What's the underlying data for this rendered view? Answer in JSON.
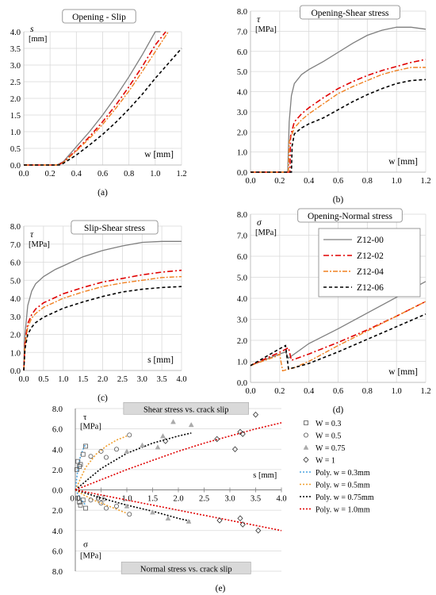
{
  "colors": {
    "Z12-00": "#7f7f7f",
    "Z12-02": "#e00000",
    "Z12-04": "#f08020",
    "Z12-06": "#000000",
    "poly_0.3": "#4aa3df",
    "poly_0.5": "#f0a030",
    "poly_0.75": "#000000",
    "poly_1.0": "#e00000"
  },
  "chart_data": [
    {
      "id": "a",
      "type": "line",
      "panel_label": "(a)",
      "title": "Opening - Slip",
      "ylabel_symbol": "s",
      "ylabel_unit": "[mm]",
      "xlabel": "w [mm]",
      "xlim": [
        0,
        1.2
      ],
      "ylim": [
        0,
        4.0
      ],
      "xticks": [
        "0.0",
        "0.2",
        "0.4",
        "0.6",
        "0.8",
        "1.0",
        "1.2"
      ],
      "yticks": [
        "0.0",
        "0.5",
        "1.0",
        "1.5",
        "2.0",
        "2.5",
        "3.0",
        "3.5",
        "4.0"
      ],
      "series": [
        {
          "key": "Z12-00",
          "x": [
            0,
            0.25,
            0.3,
            0.4,
            0.5,
            0.6,
            0.7,
            0.8,
            0.9,
            1.0,
            1.04
          ],
          "y": [
            0,
            0,
            0.1,
            0.55,
            1.0,
            1.5,
            2.05,
            2.65,
            3.3,
            4.0,
            4.0
          ]
        },
        {
          "key": "Z12-02",
          "x": [
            0,
            0.26,
            0.3,
            0.4,
            0.5,
            0.6,
            0.7,
            0.8,
            0.9,
            1.0,
            1.08
          ],
          "y": [
            0,
            0,
            0.08,
            0.45,
            0.85,
            1.3,
            1.8,
            2.35,
            2.95,
            3.6,
            4.0
          ]
        },
        {
          "key": "Z12-04",
          "x": [
            0,
            0.26,
            0.3,
            0.4,
            0.5,
            0.6,
            0.7,
            0.8,
            0.9,
            1.0,
            1.1
          ],
          "y": [
            0,
            0,
            0.07,
            0.42,
            0.8,
            1.22,
            1.7,
            2.22,
            2.8,
            3.4,
            4.0
          ]
        },
        {
          "key": "Z12-06",
          "x": [
            0,
            0.27,
            0.3,
            0.4,
            0.5,
            0.6,
            0.7,
            0.8,
            0.9,
            1.0,
            1.1,
            1.2
          ],
          "y": [
            0,
            0,
            0.05,
            0.3,
            0.6,
            0.92,
            1.28,
            1.68,
            2.12,
            2.6,
            3.05,
            3.5
          ]
        }
      ]
    },
    {
      "id": "b",
      "type": "line",
      "panel_label": "(b)",
      "title": "Opening-Shear stress",
      "ylabel_symbol": "τ",
      "ylabel_unit": "[MPa]",
      "xlabel": "w [mm]",
      "xlim": [
        0,
        1.2
      ],
      "ylim": [
        0,
        8.0
      ],
      "xticks": [
        "0.0",
        "0.2",
        "0.4",
        "0.6",
        "0.8",
        "1.0",
        "1.2"
      ],
      "yticks": [
        "0.0",
        "1.0",
        "2.0",
        "3.0",
        "4.0",
        "5.0",
        "6.0",
        "7.0",
        "8.0"
      ],
      "series": [
        {
          "key": "Z12-00",
          "x": [
            0,
            0.255,
            0.265,
            0.28,
            0.3,
            0.35,
            0.4,
            0.5,
            0.6,
            0.7,
            0.8,
            0.9,
            1.0,
            1.1,
            1.2
          ],
          "y": [
            0,
            0,
            2.5,
            3.8,
            4.4,
            4.85,
            5.1,
            5.5,
            5.95,
            6.4,
            6.8,
            7.05,
            7.2,
            7.2,
            7.1
          ]
        },
        {
          "key": "Z12-02",
          "x": [
            0,
            0.27,
            0.275,
            0.3,
            0.35,
            0.4,
            0.5,
            0.6,
            0.7,
            0.8,
            0.9,
            1.0,
            1.1,
            1.2
          ],
          "y": [
            0,
            0,
            1.8,
            2.5,
            2.9,
            3.2,
            3.7,
            4.15,
            4.5,
            4.8,
            5.05,
            5.25,
            5.45,
            5.6
          ]
        },
        {
          "key": "Z12-04",
          "x": [
            0,
            0.26,
            0.265,
            0.3,
            0.35,
            0.4,
            0.5,
            0.6,
            0.7,
            0.8,
            0.9,
            1.0,
            1.1,
            1.2
          ],
          "y": [
            0,
            0,
            1.5,
            2.2,
            2.6,
            2.9,
            3.4,
            3.9,
            4.25,
            4.55,
            4.85,
            5.05,
            5.2,
            5.2
          ]
        },
        {
          "key": "Z12-06",
          "x": [
            0,
            0.28,
            0.285,
            0.3,
            0.35,
            0.4,
            0.5,
            0.6,
            0.7,
            0.8,
            0.9,
            1.0,
            1.1,
            1.2
          ],
          "y": [
            0,
            0,
            1.3,
            1.9,
            2.2,
            2.4,
            2.7,
            3.1,
            3.5,
            3.85,
            4.15,
            4.4,
            4.55,
            4.6
          ]
        }
      ]
    },
    {
      "id": "c",
      "type": "line",
      "panel_label": "(c)",
      "title": "Slip-Shear stress",
      "ylabel_symbol": "τ",
      "ylabel_unit": "[MPa]",
      "xlabel": "s [mm]",
      "xlim": [
        0,
        4.0
      ],
      "ylim": [
        0,
        8.0
      ],
      "xticks": [
        "0.0",
        "0.5",
        "1.0",
        "1.5",
        "2.0",
        "2.5",
        "3.0",
        "3.5",
        "4.0"
      ],
      "yticks": [
        "0.0",
        "1.0",
        "2.0",
        "3.0",
        "4.0",
        "5.0",
        "6.0",
        "7.0",
        "8.0"
      ],
      "series": [
        {
          "key": "Z12-00",
          "x": [
            0,
            0.03,
            0.1,
            0.2,
            0.3,
            0.5,
            0.8,
            1.0,
            1.5,
            2.0,
            2.5,
            3.0,
            3.5,
            4.0
          ],
          "y": [
            0,
            2.0,
            3.6,
            4.4,
            4.8,
            5.2,
            5.6,
            5.8,
            6.3,
            6.65,
            6.9,
            7.1,
            7.15,
            7.15
          ]
        },
        {
          "key": "Z12-02",
          "x": [
            0,
            0.03,
            0.1,
            0.2,
            0.3,
            0.5,
            0.8,
            1.0,
            1.5,
            2.0,
            2.5,
            3.0,
            3.5,
            4.0
          ],
          "y": [
            0,
            1.5,
            2.6,
            3.1,
            3.4,
            3.75,
            4.05,
            4.25,
            4.6,
            4.9,
            5.1,
            5.3,
            5.45,
            5.55
          ]
        },
        {
          "key": "Z12-04",
          "x": [
            0,
            0.03,
            0.1,
            0.2,
            0.3,
            0.5,
            0.8,
            1.0,
            1.5,
            2.0,
            2.5,
            3.0,
            3.5,
            4.0
          ],
          "y": [
            0,
            1.4,
            2.4,
            2.9,
            3.15,
            3.5,
            3.8,
            4.0,
            4.35,
            4.65,
            4.85,
            5.0,
            5.15,
            5.2
          ]
        },
        {
          "key": "Z12-06",
          "x": [
            0,
            0.03,
            0.1,
            0.2,
            0.3,
            0.5,
            0.8,
            1.0,
            1.5,
            2.0,
            2.5,
            3.0,
            3.5,
            4.0
          ],
          "y": [
            0,
            1.2,
            2.0,
            2.4,
            2.65,
            2.95,
            3.25,
            3.45,
            3.8,
            4.1,
            4.35,
            4.5,
            4.6,
            4.65
          ]
        }
      ]
    },
    {
      "id": "d",
      "type": "line",
      "panel_label": "(d)",
      "title": "Opening-Normal stress",
      "ylabel_symbol": "σ",
      "ylabel_unit": "[MPa]",
      "xlabel": "w [mm]",
      "xlim": [
        0,
        1.2
      ],
      "ylim": [
        0,
        8.0
      ],
      "xticks": [
        "0.0",
        "0.2",
        "0.4",
        "0.6",
        "0.8",
        "1.0",
        "1.2"
      ],
      "yticks": [
        "0.0",
        "1.0",
        "2.0",
        "3.0",
        "4.0",
        "5.0",
        "6.0",
        "7.0",
        "8.0"
      ],
      "legend": [
        "Z12-00",
        "Z12-02",
        "Z12-04",
        "Z12-06"
      ],
      "series": [
        {
          "key": "Z12-00",
          "x": [
            0,
            0.2,
            0.24,
            0.26,
            0.4,
            0.6,
            0.8,
            1.0,
            1.2
          ],
          "y": [
            0.8,
            1.35,
            1.45,
            1.15,
            1.85,
            2.55,
            3.3,
            4.05,
            4.8
          ]
        },
        {
          "key": "Z12-02",
          "x": [
            0,
            0.22,
            0.26,
            0.28,
            0.4,
            0.6,
            0.8,
            1.0,
            1.2
          ],
          "y": [
            0.8,
            1.5,
            1.65,
            1.05,
            1.35,
            1.9,
            2.5,
            3.15,
            3.85
          ]
        },
        {
          "key": "Z12-04",
          "x": [
            0,
            0.18,
            0.2,
            0.22,
            0.3,
            0.4,
            0.6,
            0.8,
            1.0,
            1.2
          ],
          "y": [
            0.8,
            1.25,
            1.35,
            0.55,
            0.7,
            1.0,
            1.75,
            2.45,
            3.15,
            3.85
          ]
        },
        {
          "key": "Z12-06",
          "x": [
            0,
            0.2,
            0.24,
            0.26,
            0.3,
            0.4,
            0.6,
            0.8,
            1.0,
            1.2
          ],
          "y": [
            0.8,
            1.6,
            1.75,
            0.65,
            0.7,
            0.9,
            1.45,
            2.05,
            2.65,
            3.25
          ]
        }
      ]
    },
    {
      "id": "e",
      "type": "scatter",
      "panel_label": "(e)",
      "title_top": "Shear stress vs. crack slip",
      "title_bottom": "Normal stress vs. crack slip",
      "ylabel_top_symbol": "τ",
      "ylabel_top_unit": "[MPa]",
      "ylabel_bottom_symbol": "σ",
      "ylabel_bottom_unit": "[MPa]",
      "xlabel": "s [mm]",
      "xlim": [
        0,
        4.0
      ],
      "ylim": [
        -8.0,
        8.0
      ],
      "xticks": [
        "0.0",
        "0.5",
        "1.0",
        "1.5",
        "2.0",
        "2.5",
        "3.0",
        "3.5",
        "4.0"
      ],
      "yticks": [
        "8.0",
        "6.0",
        "4.0",
        "2.0",
        "0.0",
        "2.0",
        "4.0",
        "6.0",
        "8.0"
      ],
      "legend": [
        "W = 0.3",
        "W = 0.5",
        "W = 0.75",
        "W = 1",
        "Poly. w = 0.3mm",
        "Poly. w = 0.5mm",
        "Poly. w = 0.75mm",
        "Poly. w = 1.0mm"
      ],
      "scatter": [
        {
          "name": "W = 0.3",
          "marker": "square",
          "x": [
            0.03,
            0.05,
            0.08,
            0.1,
            0.15,
            0.2,
            0.05,
            0.08,
            0.1,
            0.15,
            0.2
          ],
          "y": [
            2.0,
            2.8,
            2.3,
            2.5,
            3.5,
            4.3,
            -0.8,
            -1.2,
            -1.5,
            -1.0,
            -1.8
          ]
        },
        {
          "name": "W = 0.5",
          "marker": "circle",
          "x": [
            0.3,
            0.5,
            0.6,
            0.8,
            1.05,
            0.3,
            0.5,
            0.6,
            0.8,
            1.05
          ],
          "y": [
            3.3,
            3.8,
            3.2,
            4.0,
            5.4,
            -1.0,
            -1.3,
            -1.8,
            -1.6,
            -2.4
          ]
        },
        {
          "name": "W = 0.75",
          "marker": "triangle",
          "x": [
            1.0,
            1.3,
            1.6,
            1.7,
            1.9,
            2.25,
            1.0,
            1.5,
            1.8,
            2.2
          ],
          "y": [
            3.8,
            4.4,
            4.2,
            5.3,
            6.7,
            6.4,
            -1.6,
            -2.2,
            -2.8,
            -3.1
          ]
        },
        {
          "name": "W = 1",
          "marker": "diamond",
          "x": [
            1.75,
            2.75,
            3.1,
            3.2,
            3.25,
            3.5,
            2.8,
            3.2,
            3.25,
            3.55
          ],
          "y": [
            4.8,
            5.0,
            4.0,
            5.7,
            5.5,
            7.4,
            -3.0,
            -2.8,
            -3.4,
            -4.0
          ]
        }
      ],
      "fits": [
        {
          "name": "Poly. w = 0.3mm",
          "x": [
            0.0,
            0.05,
            0.1,
            0.15,
            0.2
          ],
          "y_top": [
            0.0,
            2.1,
            3.3,
            4.0,
            4.5
          ],
          "y_bottom": [
            0.0,
            -0.4,
            -0.8,
            -1.2,
            -1.5
          ]
        },
        {
          "name": "Poly. w = 0.5mm",
          "x": [
            0.0,
            0.2,
            0.4,
            0.6,
            0.8,
            1.0
          ],
          "y_top": [
            0.0,
            2.2,
            3.5,
            4.3,
            4.9,
            5.3
          ],
          "y_bottom": [
            0.0,
            -0.6,
            -1.1,
            -1.5,
            -1.9,
            -2.3
          ]
        },
        {
          "name": "Poly. w = 0.75mm",
          "x": [
            0.0,
            0.5,
            1.0,
            1.5,
            2.0,
            2.25
          ],
          "y_top": [
            0.0,
            2.1,
            3.6,
            4.6,
            5.3,
            5.6
          ],
          "y_bottom": [
            0.0,
            -0.8,
            -1.5,
            -2.1,
            -2.8,
            -3.1
          ]
        },
        {
          "name": "Poly. w = 1.0mm",
          "x": [
            0.0,
            0.5,
            1.0,
            1.5,
            2.0,
            2.5,
            3.0,
            3.5,
            4.0
          ],
          "y_top": [
            0.0,
            1.0,
            2.0,
            2.9,
            3.8,
            4.6,
            5.3,
            6.0,
            6.6
          ],
          "y_bottom": [
            0.0,
            -0.5,
            -1.0,
            -1.5,
            -2.0,
            -2.5,
            -3.0,
            -3.5,
            -4.0
          ]
        }
      ]
    }
  ]
}
